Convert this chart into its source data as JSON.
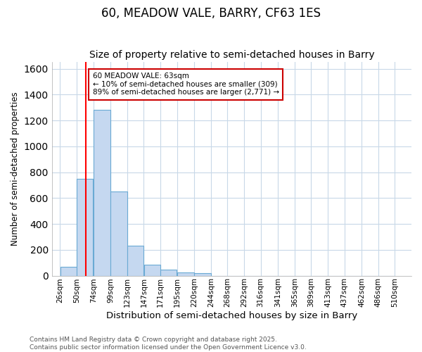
{
  "title": "60, MEADOW VALE, BARRY, CF63 1ES",
  "subtitle": "Size of property relative to semi-detached houses in Barry",
  "xlabel": "Distribution of semi-detached houses by size in Barry",
  "ylabel": "Number of semi-detached properties",
  "bin_labels": [
    "26sqm",
    "50sqm",
    "74sqm",
    "99sqm",
    "123sqm",
    "147sqm",
    "171sqm",
    "195sqm",
    "220sqm",
    "244sqm",
    "268sqm",
    "292sqm",
    "316sqm",
    "341sqm",
    "365sqm",
    "389sqm",
    "413sqm",
    "437sqm",
    "462sqm",
    "486sqm",
    "510sqm"
  ],
  "bin_edges": [
    26,
    50,
    74,
    99,
    123,
    147,
    171,
    195,
    220,
    244,
    268,
    292,
    316,
    341,
    365,
    389,
    413,
    437,
    462,
    486,
    510
  ],
  "bar_heights": [
    70,
    750,
    1280,
    650,
    230,
    85,
    45,
    25,
    20,
    0,
    0,
    0,
    0,
    0,
    0,
    0,
    0,
    0,
    0,
    0
  ],
  "bar_color": "#c5d8f0",
  "bar_edge_color": "#6aaad4",
  "plot_bg_color": "#ffffff",
  "fig_bg_color": "#ffffff",
  "grid_color": "#c8d8e8",
  "red_line_x": 63,
  "annotation_title": "60 MEADOW VALE: 63sqm",
  "annotation_line1": "← 10% of semi-detached houses are smaller (309)",
  "annotation_line2": "89% of semi-detached houses are larger (2,771) →",
  "annotation_box_color": "#ffffff",
  "annotation_box_edge": "#cc0000",
  "footer_line1": "Contains HM Land Registry data © Crown copyright and database right 2025.",
  "footer_line2": "Contains public sector information licensed under the Open Government Licence v3.0.",
  "ylim": [
    0,
    1650
  ],
  "xlim_left": 14,
  "xlim_right": 534,
  "title_fontsize": 12,
  "subtitle_fontsize": 10,
  "tick_fontsize": 7.5,
  "ylabel_fontsize": 8.5,
  "xlabel_fontsize": 9.5,
  "footer_fontsize": 6.5
}
